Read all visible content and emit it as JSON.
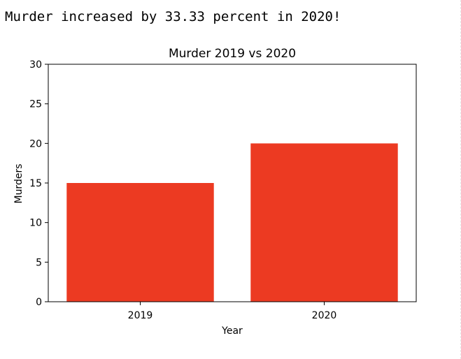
{
  "output": {
    "text": "Murder increased by 33.33 percent in 2020!"
  },
  "chart_data": {
    "type": "bar",
    "title": "Murder 2019 vs 2020",
    "xlabel": "Year",
    "ylabel": "Murders",
    "categories": [
      "2019",
      "2020"
    ],
    "values": [
      15,
      20
    ],
    "ylim": [
      0,
      30
    ],
    "yticks": [
      0,
      5,
      10,
      15,
      20,
      25,
      30
    ],
    "grid": false,
    "bar_color": "#ec3a22"
  }
}
